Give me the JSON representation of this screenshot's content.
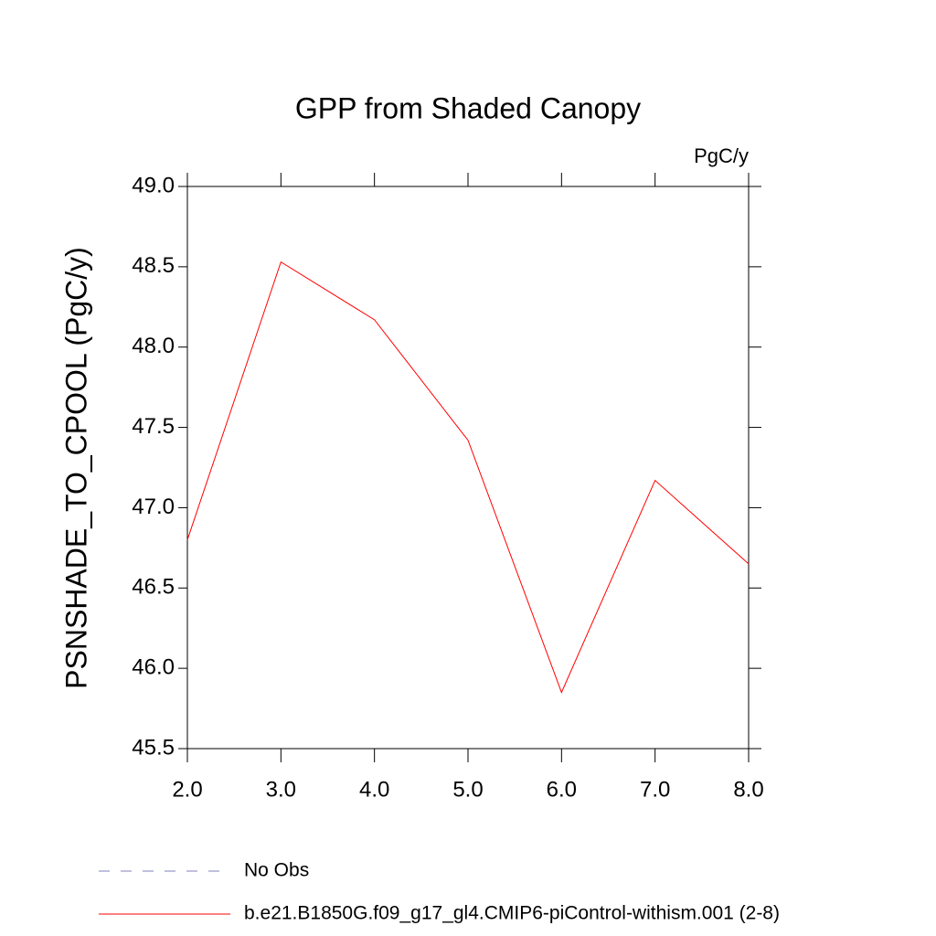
{
  "chart_data": {
    "type": "line",
    "title": "GPP from Shaded Canopy",
    "units": "PgC/y",
    "y_label": "PSNSHADE_TO_CPOOL  (PgC/y)",
    "x": [
      2,
      3,
      4,
      5,
      6,
      7,
      8
    ],
    "series": [
      {
        "name": "No Obs",
        "color": "#8080c0",
        "dash": true,
        "values": [
          null,
          null,
          null,
          null,
          null,
          null,
          null
        ]
      },
      {
        "name": "b.e21.B1850G.f09_g17_gl4.CMIP6-piControl-withism.001 (2-8)",
        "color": "#ff0000",
        "dash": false,
        "values": [
          46.8,
          48.53,
          48.17,
          47.42,
          45.85,
          47.17,
          46.65
        ]
      }
    ],
    "xlim": [
      2,
      8
    ],
    "xticks": [
      {
        "value": 2,
        "label": "2.0"
      },
      {
        "value": 3,
        "label": "3.0"
      },
      {
        "value": 4,
        "label": "4.0"
      },
      {
        "value": 5,
        "label": "5.0"
      },
      {
        "value": 6,
        "label": "6.0"
      },
      {
        "value": 7,
        "label": "7.0"
      },
      {
        "value": 8,
        "label": "8.0"
      }
    ],
    "ylim": [
      45.5,
      49
    ],
    "yticks": [
      45.5,
      {
        "value": 46,
        "label": "46.0"
      },
      46.5,
      {
        "value": 47,
        "label": "47.0"
      },
      47.5,
      {
        "value": 48,
        "label": "48.0"
      },
      48.5,
      {
        "value": 49,
        "label": "49.0"
      }
    ],
    "grid": false
  }
}
